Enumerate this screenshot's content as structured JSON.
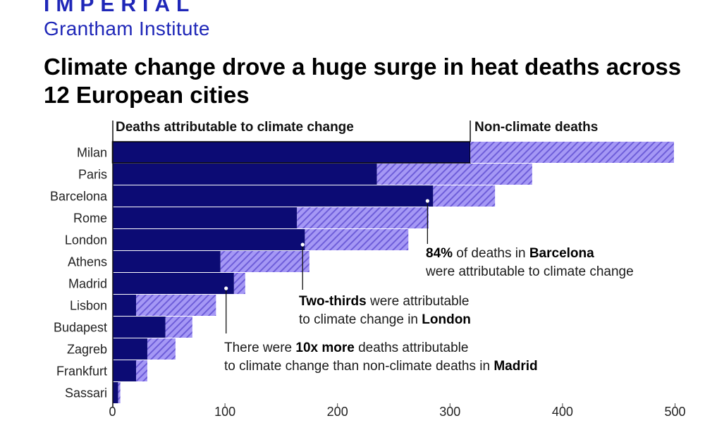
{
  "branding": {
    "logo_text": "IMPERIAL",
    "institute": "Grantham Institute",
    "color": "#1f27b8"
  },
  "chart_data": {
    "type": "bar",
    "orientation": "horizontal",
    "stacked": true,
    "title": "Climate change drove a huge surge in heat deaths across 12 European cities",
    "categories": [
      "Milan",
      "Paris",
      "Barcelona",
      "Rome",
      "London",
      "Athens",
      "Madrid",
      "Lisbon",
      "Budapest",
      "Zagreb",
      "Frankfurt",
      "Sassari"
    ],
    "series": [
      {
        "name": "Deaths attributable to climate change",
        "values": [
          318,
          235,
          285,
          164,
          171,
          96,
          108,
          21,
          47,
          31,
          21,
          5
        ],
        "color": "#0c0b74"
      },
      {
        "name": "Non-climate deaths",
        "values": [
          181,
          138,
          55,
          117,
          92,
          79,
          10,
          71,
          24,
          25,
          10,
          2
        ],
        "color": "#a598f5",
        "hatch_color": "#6b5bd8"
      }
    ],
    "xlim": [
      0,
      500
    ],
    "xticks": [
      0,
      100,
      200,
      300,
      400,
      500
    ],
    "grid": false,
    "legend": "top-left",
    "annotations": [
      {
        "lines": [
          [
            {
              "text": "84%",
              "bold": true
            },
            {
              "text": " of deaths in "
            },
            {
              "text": "Barcelona",
              "bold": true
            }
          ],
          [
            {
              "text": "were attributable to climate change"
            }
          ]
        ]
      },
      {
        "lines": [
          [
            {
              "text": "Two-thirds",
              "bold": true
            },
            {
              "text": " were attributable"
            }
          ],
          [
            {
              "text": "to climate change in "
            },
            {
              "text": "London",
              "bold": true
            }
          ]
        ]
      },
      {
        "lines": [
          [
            {
              "text": "There were "
            },
            {
              "text": "10x more",
              "bold": true
            },
            {
              "text": " deaths attributable"
            }
          ],
          [
            {
              "text": "to climate change than non-climate deaths in "
            },
            {
              "text": "Madrid",
              "bold": true
            }
          ]
        ]
      }
    ]
  }
}
